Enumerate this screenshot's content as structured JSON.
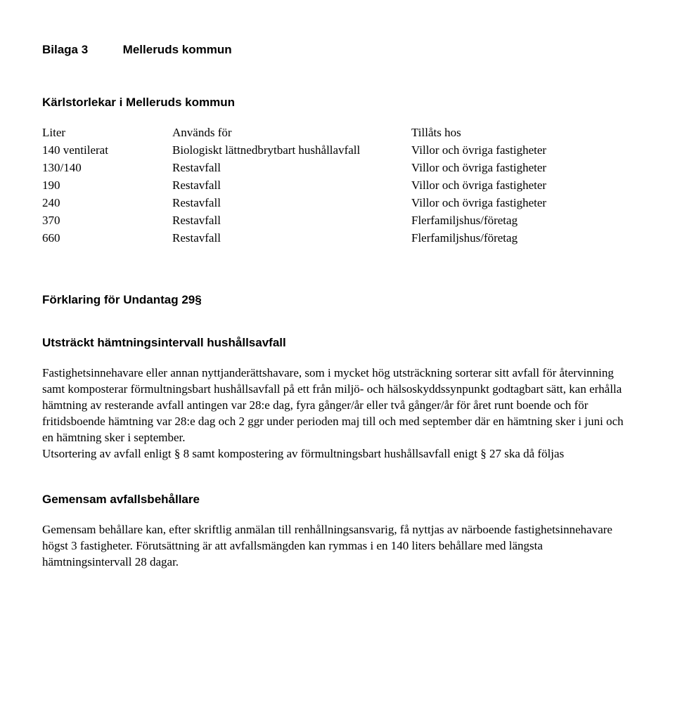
{
  "header": {
    "left": "Bilaga 3",
    "right": "Melleruds kommun"
  },
  "karlstorlekar": {
    "title": "Kärlstorlekar i Melleruds kommun",
    "columns": [
      "Liter",
      "Används för",
      "Tillåts hos"
    ],
    "rows": [
      [
        "140 ventilerat",
        "Biologiskt lättnedbrytbart hushållavfall",
        "Villor och övriga fastigheter"
      ],
      [
        "130/140",
        "Restavfall",
        "Villor och övriga fastigheter"
      ],
      [
        "190",
        "Restavfall",
        "Villor och övriga fastigheter"
      ],
      [
        "240",
        "Restavfall",
        "Villor och övriga fastigheter"
      ],
      [
        "370",
        "Restavfall",
        "Flerfamiljshus/företag"
      ],
      [
        "660",
        "Restavfall",
        "Flerfamiljshus/företag"
      ]
    ]
  },
  "undantag": {
    "title": "Förklaring för Undantag 29§",
    "utstrackt_title": "Utsträckt hämtningsintervall hushållsavfall",
    "paragraph1": "Fastighetsinnehavare eller annan nyttjanderättshavare, som i mycket hög utsträckning sorterar sitt avfall för återvinning samt komposterar förmultningsbart hushållsavfall på ett från miljö- och hälsoskyddssynpunkt godtagbart sätt, kan erhålla hämtning av resterande avfall antingen var 28:e dag, fyra gånger/år eller två gånger/år för året runt boende och för fritidsboende hämtning var 28:e dag och 2 ggr under perioden maj till och med september där en hämtning sker i juni och en hämtning sker i september.",
    "paragraph2": "Utsortering av avfall enligt § 8 samt kompostering av förmultningsbart hushållsavfall enigt § 27 ska då följas"
  },
  "gemensam": {
    "title": "Gemensam avfallsbehållare",
    "paragraph": "Gemensam behållare kan, efter skriftlig anmälan till renhållningsansvarig, få nyttjas av närboende fastighetsinnehavare högst 3 fastigheter. Förutsättning är att avfallsmängden kan rymmas i en 140 liters behållare med längsta hämtningsintervall 28 dagar."
  }
}
